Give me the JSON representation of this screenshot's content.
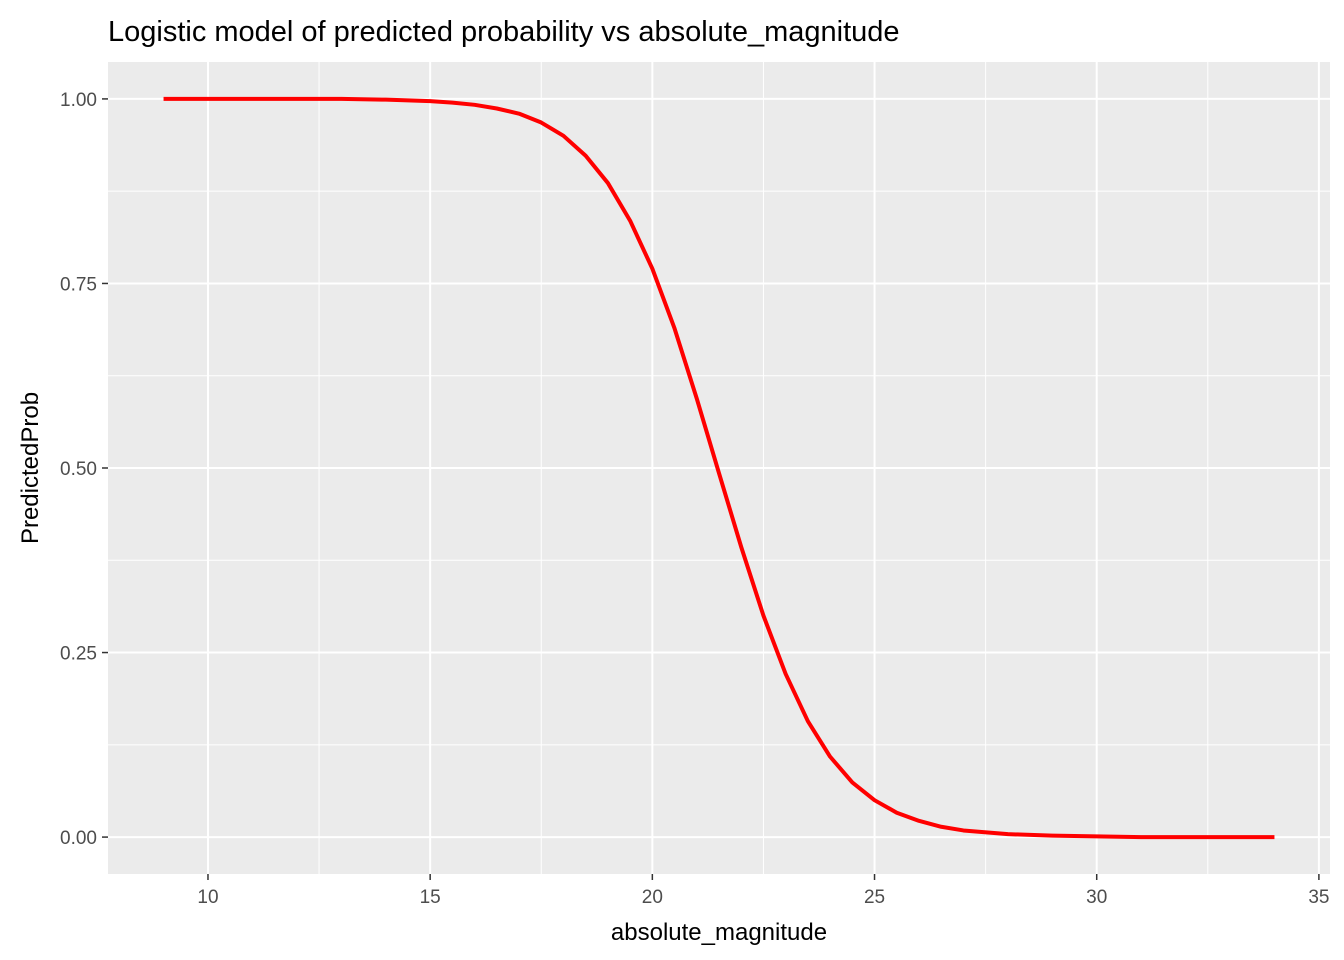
{
  "chart_data": {
    "type": "line",
    "title": "Logistic model of predicted probability vs absolute_magnitude",
    "xlabel": "absolute_magnitude",
    "ylabel": "PredictedProb",
    "xlim": [
      7.75,
      35.25
    ],
    "ylim": [
      -0.05,
      1.05
    ],
    "x_ticks": [
      10,
      15,
      20,
      25,
      30,
      35
    ],
    "x_tick_labels": [
      "10",
      "15",
      "20",
      "25",
      "30",
      "35"
    ],
    "y_ticks": [
      0,
      0.25,
      0.5,
      0.75,
      1.0
    ],
    "y_tick_labels": [
      "0.00",
      "0.25",
      "0.50",
      "0.75",
      "1.00"
    ],
    "grid": true,
    "legend": "none",
    "series": [
      {
        "color": "#ff0000",
        "x": [
          9,
          10,
          11,
          12,
          13,
          14,
          15,
          15.5,
          16,
          16.5,
          17,
          17.5,
          18,
          18.5,
          19,
          19.5,
          20,
          20.5,
          21,
          21.5,
          22,
          22.5,
          23,
          23.5,
          24,
          24.5,
          25,
          25.5,
          26,
          26.5,
          27,
          28,
          29,
          30,
          31,
          32,
          33,
          34
        ],
        "y": [
          1.0,
          1.0,
          1.0,
          1.0,
          1.0,
          0.999,
          0.997,
          0.995,
          0.992,
          0.987,
          0.98,
          0.968,
          0.95,
          0.923,
          0.886,
          0.835,
          0.77,
          0.689,
          0.594,
          0.493,
          0.393,
          0.3,
          0.221,
          0.157,
          0.109,
          0.074,
          0.05,
          0.033,
          0.022,
          0.014,
          0.009,
          0.004,
          0.002,
          0.001,
          0.0,
          0.0,
          0.0,
          0.0
        ]
      }
    ]
  }
}
